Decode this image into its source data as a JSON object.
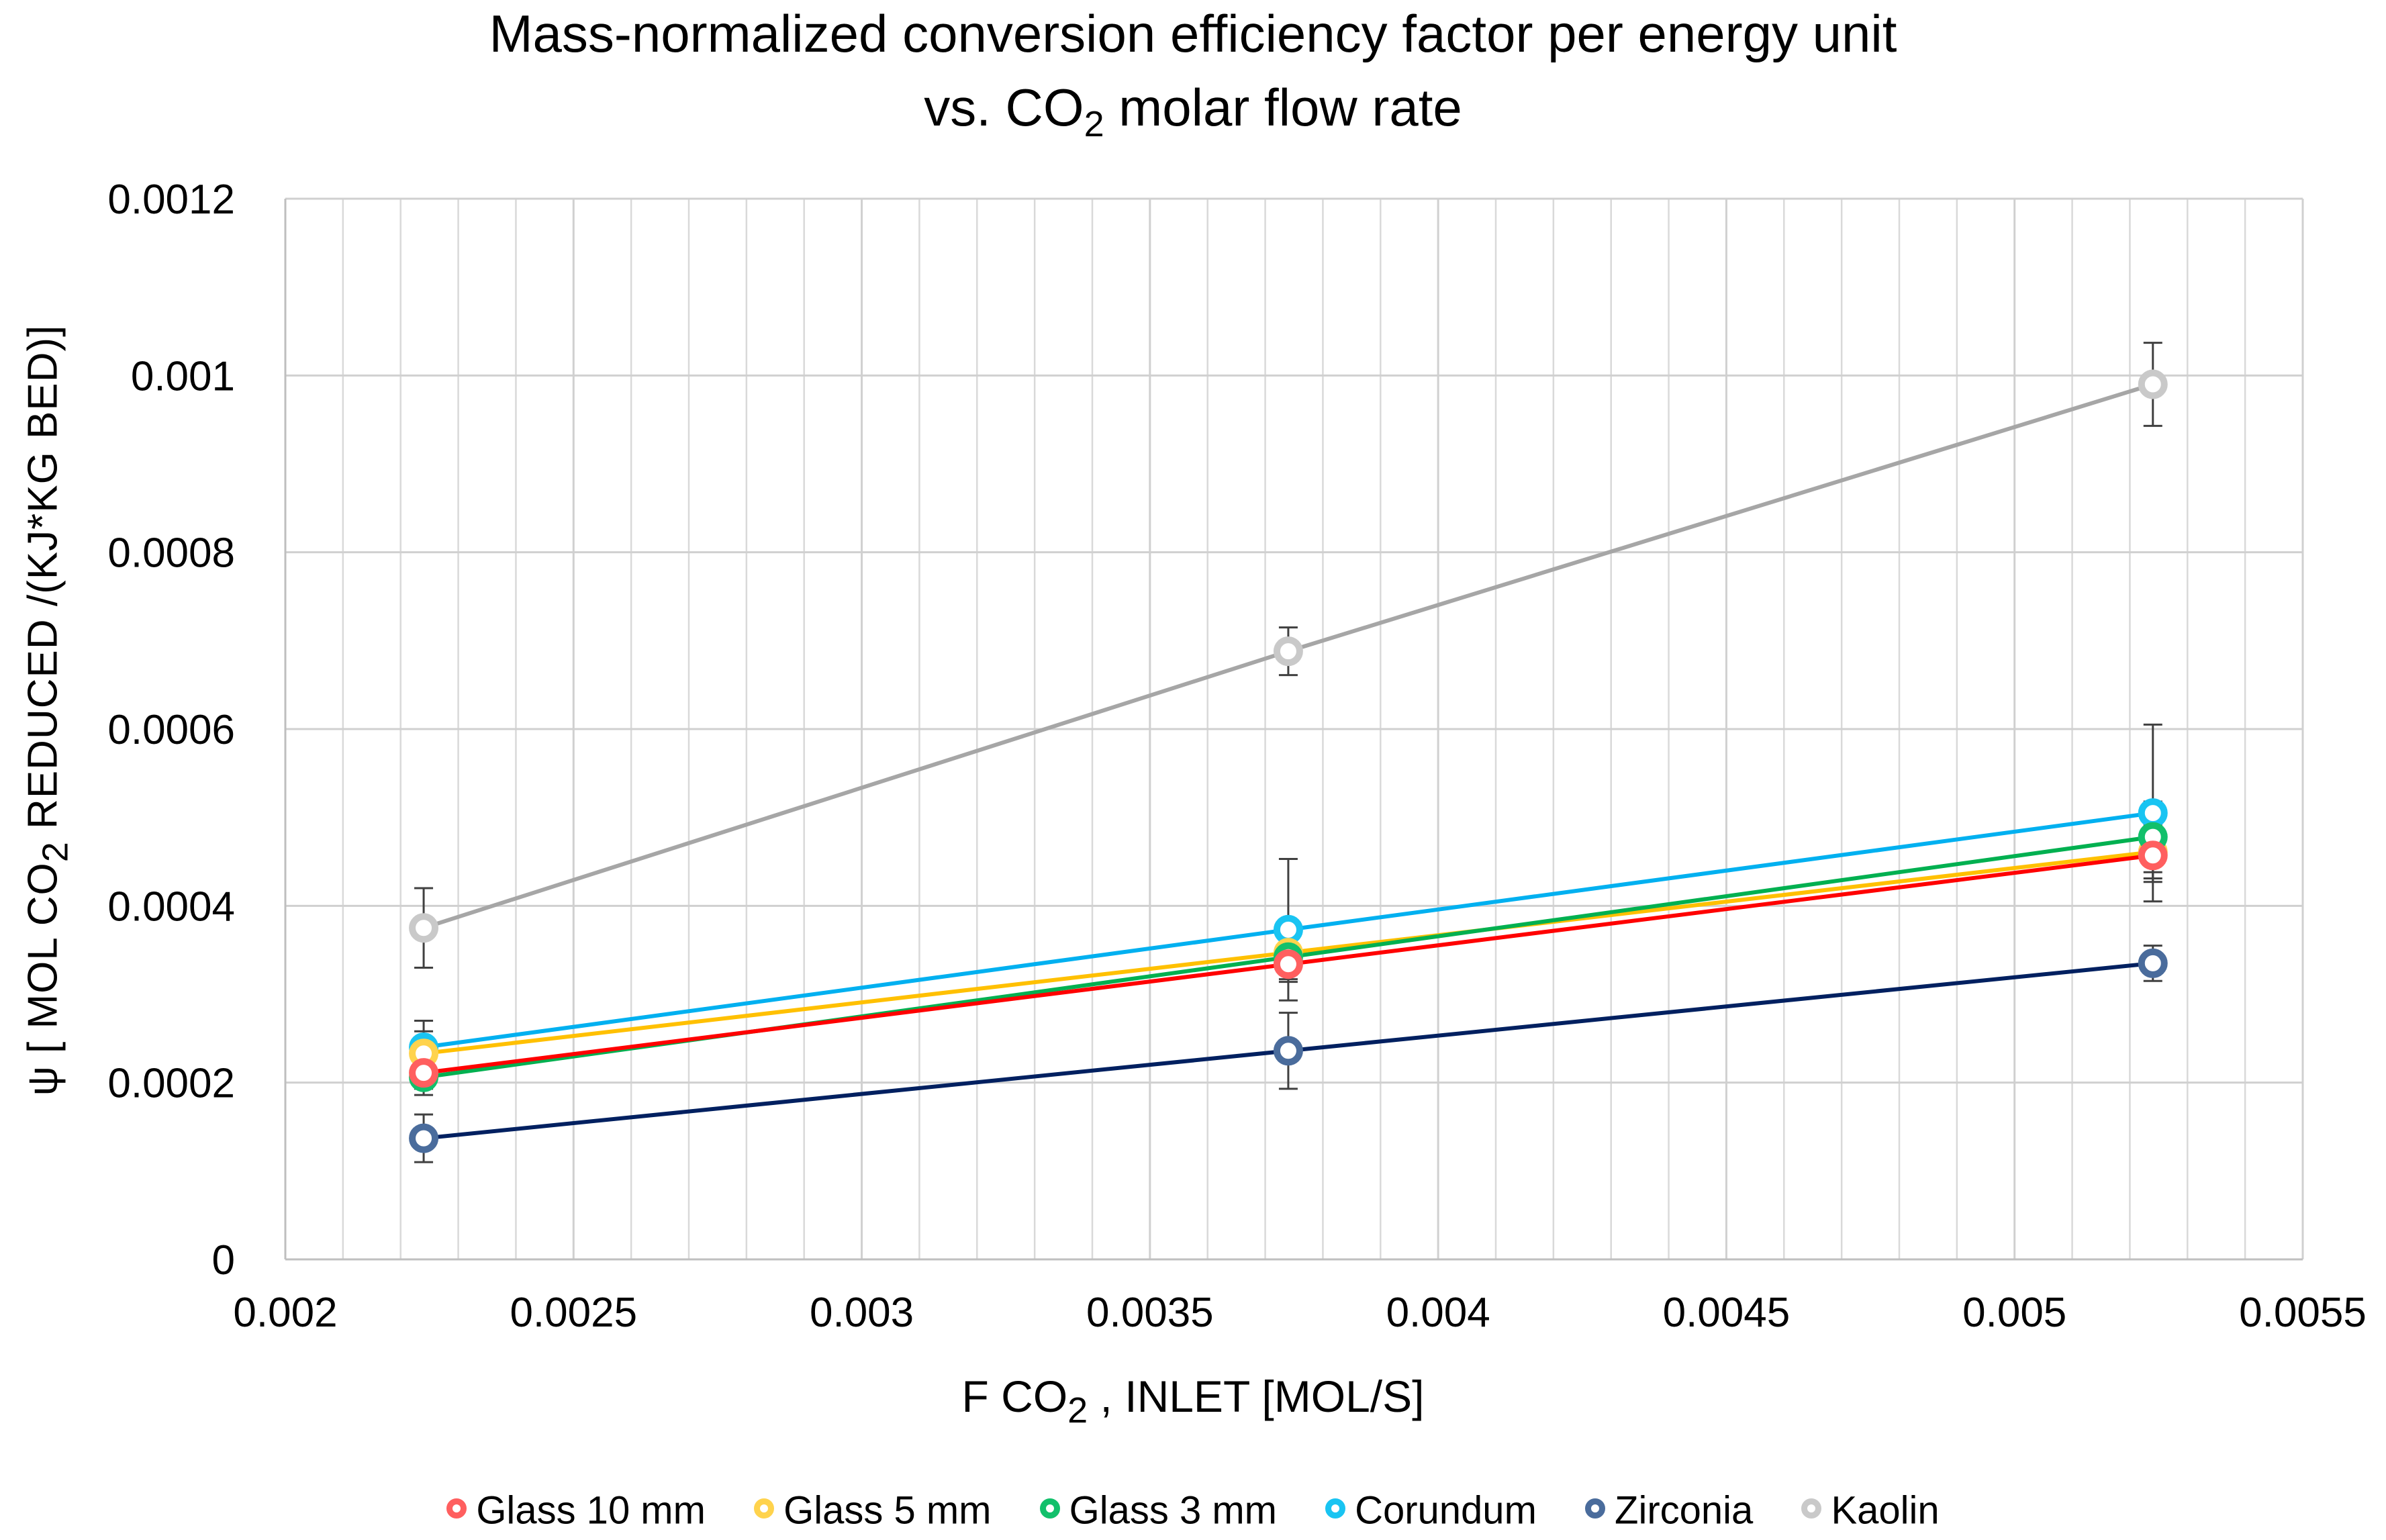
{
  "chart_data": {
    "type": "scatter",
    "title_line1": "Mass-normalized conversion efficiency factor per energy unit",
    "title_line2_prefix": "vs. CO",
    "title_line2_sub": "2",
    "title_line2_suffix": " molar flow rate",
    "ylabel_prefix": "ψ [ MOL CO",
    "ylabel_sub": "2",
    "ylabel_suffix": " REDUCED /(KJ*KG BED)]",
    "xlabel_prefix": "F CO",
    "xlabel_sub": "2",
    "xlabel_suffix": " , INLET [MOL/S]",
    "xlim": [
      0.002,
      0.0055
    ],
    "ylim": [
      0,
      0.0012
    ],
    "x_major_ticks": [
      0.002,
      0.0025,
      0.003,
      0.0035,
      0.004,
      0.0045,
      0.005,
      0.0055
    ],
    "x_tick_labels": [
      "0.002",
      "0.0025",
      "0.003",
      "0.0035",
      "0.004",
      "0.0045",
      "0.005",
      "0.0055"
    ],
    "x_minor_step": 0.0001,
    "y_major_ticks": [
      0,
      0.0002,
      0.0004,
      0.0006,
      0.0008,
      0.001,
      0.0012
    ],
    "y_tick_labels": [
      "0",
      "0.0002",
      "0.0004",
      "0.0006",
      "0.0008",
      "0.001",
      "0.0012"
    ],
    "grid": true,
    "legend_position": "bottom",
    "x": [
      0.00224,
      0.00374,
      0.00524
    ],
    "series": [
      {
        "name": "Kaolin",
        "color": "#a6a6a6",
        "marker_color": "#c9c9c9",
        "values": [
          0.000375,
          0.000688,
          0.00099
        ],
        "errors": [
          4.5e-05,
          2.7e-05,
          4.7e-05
        ]
      },
      {
        "name": "Corundum",
        "color": "#00b0f0",
        "marker_color": "#19c4f2",
        "values": [
          0.00024,
          0.000373,
          0.000505
        ],
        "errors": [
          3e-05,
          8e-05,
          0.0001
        ]
      },
      {
        "name": "Glass 5 mm",
        "color": "#ffc000",
        "marker_color": "#ffd34d",
        "values": [
          0.000233,
          0.000347,
          0.000461
        ],
        "errors": [
          2.5e-05,
          3e-05,
          3e-05
        ]
      },
      {
        "name": "Glass 3 mm",
        "color": "#00b050",
        "marker_color": "#12c06b",
        "values": [
          0.000206,
          0.000342,
          0.000478
        ],
        "errors": [
          2e-05,
          2e-05,
          4e-05
        ]
      },
      {
        "name": "Glass 10 mm",
        "color": "#ff0000",
        "marker_color": "#ff5f5f",
        "values": [
          0.000211,
          0.000334,
          0.000457
        ],
        "errors": [
          1.8e-05,
          2e-05,
          3e-05
        ]
      },
      {
        "name": "Zirconia",
        "color": "#002060",
        "marker_color": "#4a6c9c",
        "values": [
          0.000137,
          0.000236,
          0.000335
        ],
        "errors": [
          2.7e-05,
          4.3e-05,
          2e-05
        ]
      }
    ],
    "legend": [
      {
        "name": "Glass 10 mm",
        "color": "#ff5f5f"
      },
      {
        "name": "Glass 5 mm",
        "color": "#ffd34d"
      },
      {
        "name": "Glass 3 mm",
        "color": "#12c06b"
      },
      {
        "name": "Corundum",
        "color": "#19c4f2"
      },
      {
        "name": "Zirconia",
        "color": "#4a6c9c"
      },
      {
        "name": "Kaolin",
        "color": "#c9c9c9"
      }
    ]
  }
}
